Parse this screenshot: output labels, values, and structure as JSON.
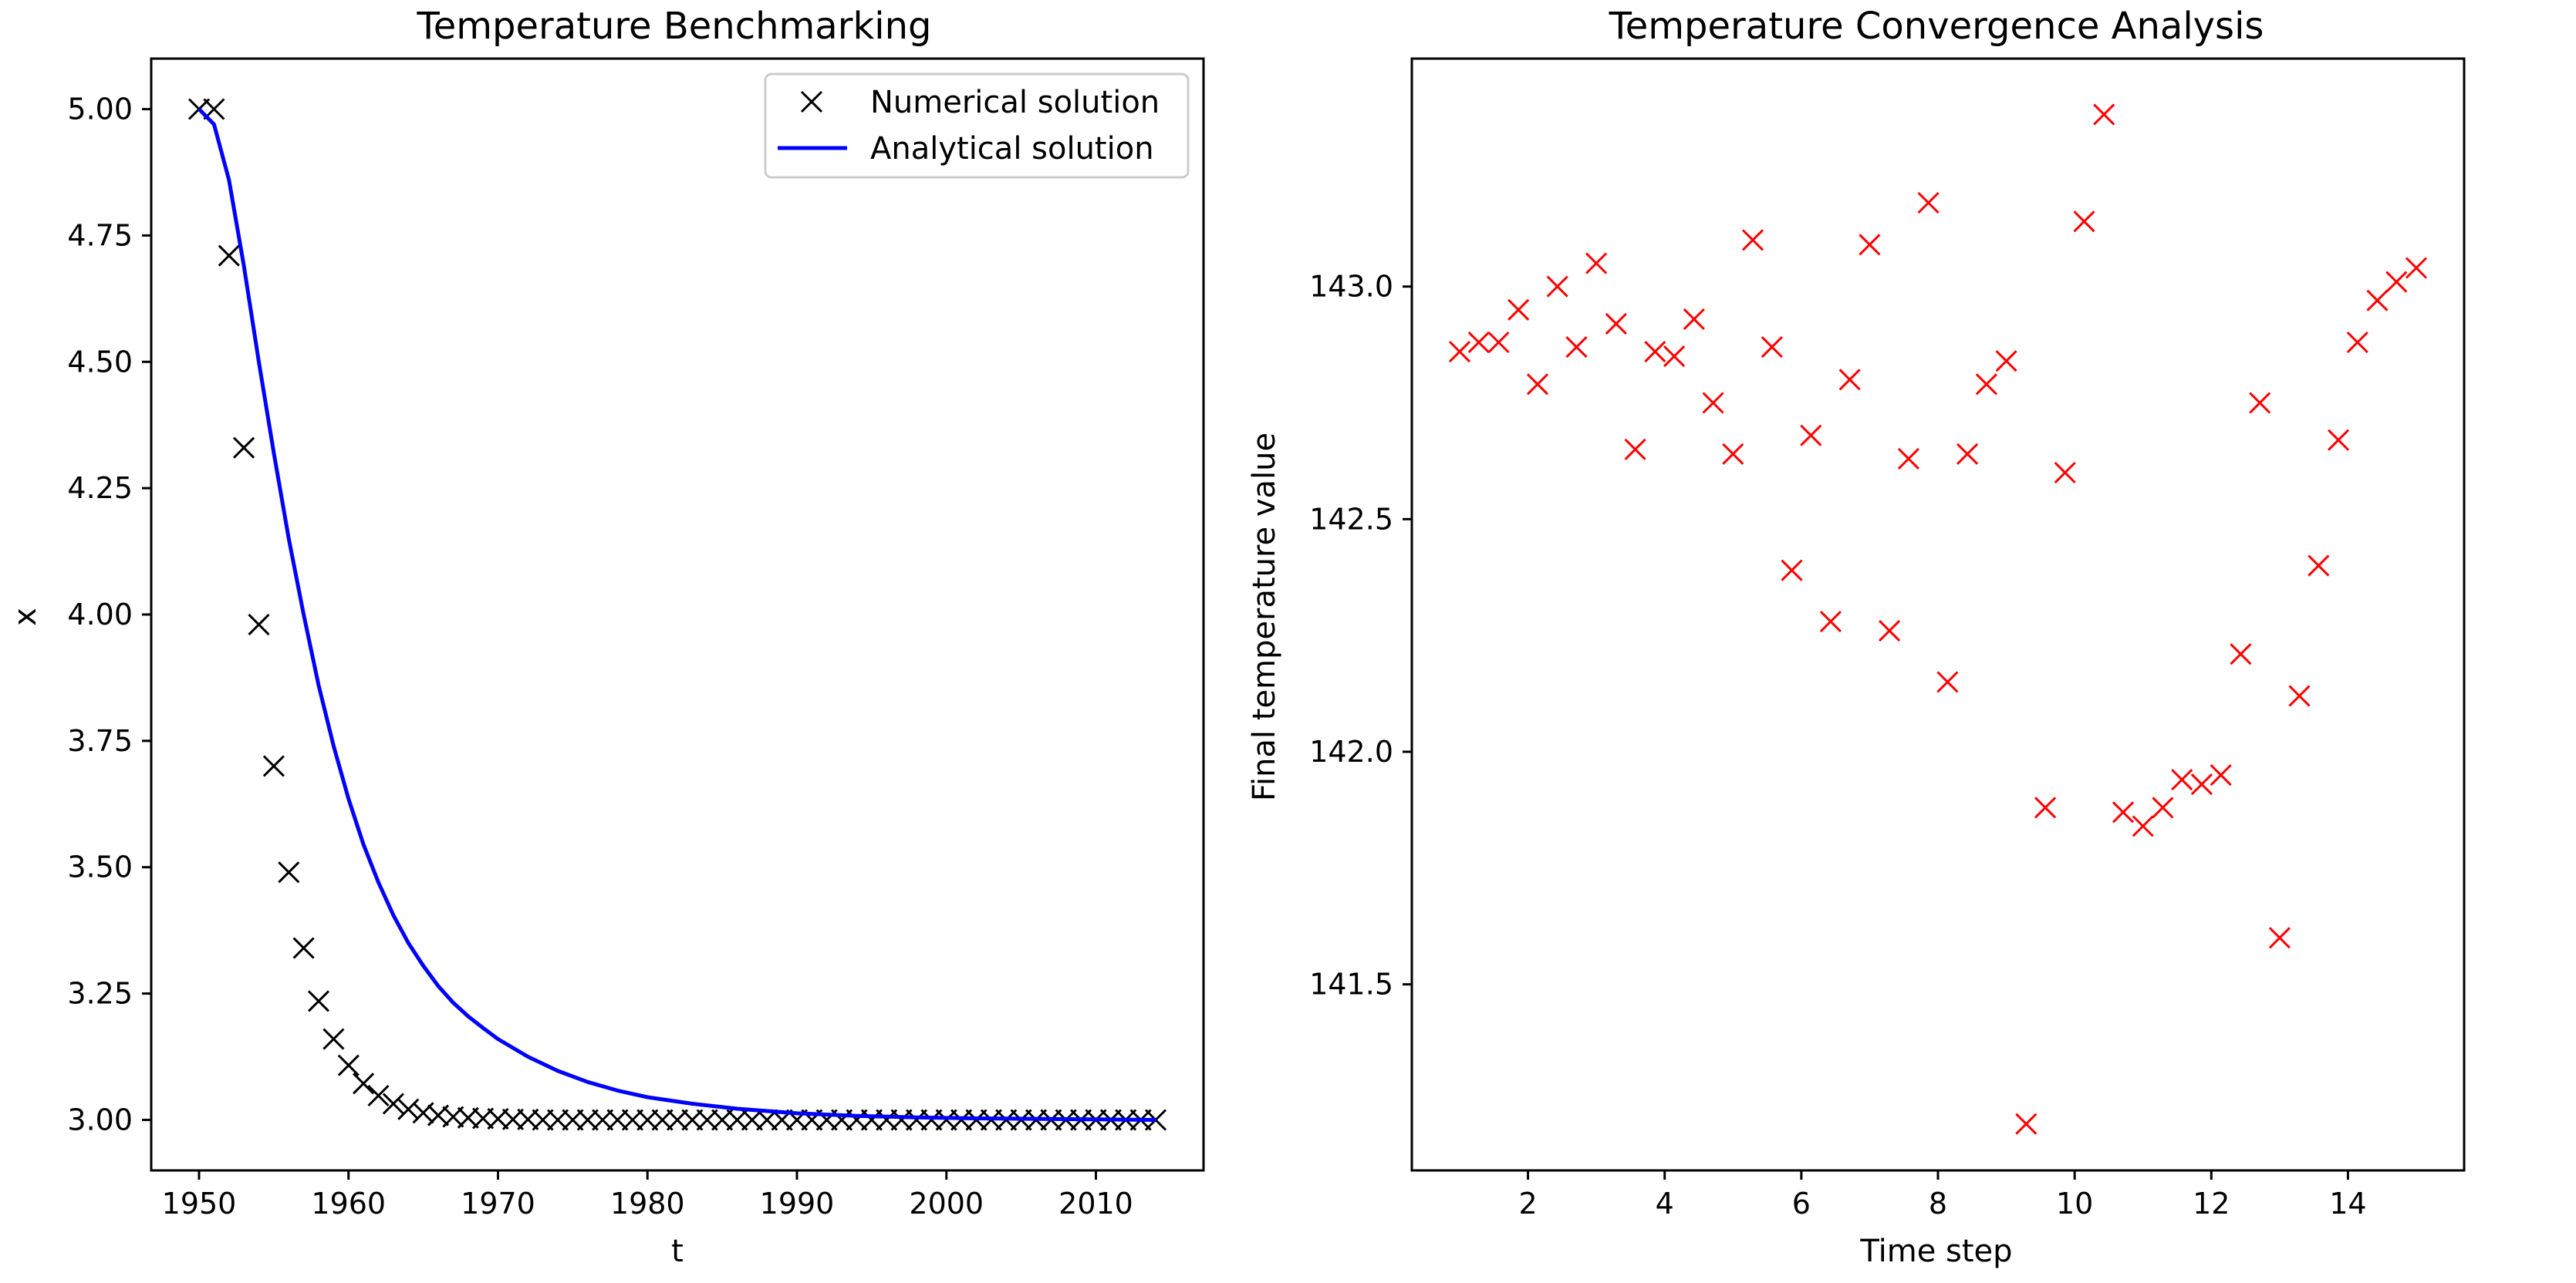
{
  "chart_data": [
    {
      "type": "line",
      "title": "Temperature Benchmarking",
      "xlabel": "t",
      "ylabel": "x",
      "xlim": [
        1946.8,
        2017.2
      ],
      "ylim": [
        2.9,
        5.1
      ],
      "xticks": [
        1950,
        1960,
        1970,
        1980,
        1990,
        2000,
        2010
      ],
      "xtick_labels": [
        "1950",
        "1960",
        "1970",
        "1980",
        "1990",
        "2000",
        "2010"
      ],
      "yticks": [
        3.0,
        3.25,
        3.5,
        3.75,
        4.0,
        4.25,
        4.5,
        4.75,
        5.0
      ],
      "ytick_labels": [
        "3.00",
        "3.25",
        "3.50",
        "3.75",
        "4.00",
        "4.25",
        "4.50",
        "4.75",
        "5.00"
      ],
      "grid": false,
      "legend_position": "top-right",
      "series": [
        {
          "name": "Numerical solution",
          "marker": "x",
          "color": "#000000",
          "x": [
            1950,
            1951,
            1952,
            1953,
            1954,
            1955,
            1956,
            1957,
            1958,
            1959,
            1960,
            1961,
            1962,
            1963,
            1964,
            1965,
            1966,
            1967,
            1968,
            1969,
            1970,
            1971,
            1972,
            1973,
            1974,
            1975,
            1976,
            1977,
            1978,
            1979,
            1980,
            1981,
            1982,
            1983,
            1984,
            1985,
            1986,
            1987,
            1988,
            1989,
            1990,
            1991,
            1992,
            1993,
            1994,
            1995,
            1996,
            1997,
            1998,
            1999,
            2000,
            2001,
            2002,
            2003,
            2004,
            2005,
            2006,
            2007,
            2008,
            2009,
            2010,
            2011,
            2012,
            2013,
            2014
          ],
          "y": [
            5.0,
            5.0,
            4.71,
            4.33,
            3.98,
            3.7,
            3.49,
            3.34,
            3.235,
            3.16,
            3.108,
            3.072,
            3.048,
            3.032,
            3.021,
            3.014,
            3.009,
            3.006,
            3.004,
            3.003,
            3.002,
            3.001,
            3.001,
            3.0,
            3.0,
            3.0,
            3.0,
            3.0,
            3.0,
            3.0,
            3.0,
            3.0,
            3.0,
            3.0,
            3.0,
            3.0,
            3.0,
            3.0,
            3.0,
            3.0,
            3.0,
            3.0,
            3.0,
            3.0,
            3.0,
            3.0,
            3.0,
            3.0,
            3.0,
            3.0,
            3.0,
            3.0,
            3.0,
            3.0,
            3.0,
            3.0,
            3.0,
            3.0,
            3.0,
            3.0,
            3.0,
            3.0,
            3.0,
            3.0,
            3.0
          ]
        },
        {
          "name": "Analytical solution",
          "style": "line",
          "color": "#0000ff",
          "x": [
            1950,
            1951,
            1952,
            1953,
            1954,
            1955,
            1956,
            1957,
            1958,
            1959,
            1960,
            1961,
            1962,
            1963,
            1964,
            1965,
            1966,
            1967,
            1968,
            1969,
            1970,
            1972,
            1974,
            1976,
            1978,
            1980,
            1983,
            1986,
            1990,
            1994,
            1998,
            2002,
            2006,
            2010,
            2014
          ],
          "y": [
            5.0,
            4.97,
            4.86,
            4.69,
            4.5,
            4.32,
            4.15,
            4.0,
            3.86,
            3.74,
            3.635,
            3.545,
            3.47,
            3.405,
            3.35,
            3.305,
            3.265,
            3.232,
            3.205,
            3.182,
            3.16,
            3.125,
            3.097,
            3.075,
            3.058,
            3.045,
            3.032,
            3.022,
            3.013,
            3.008,
            3.005,
            3.003,
            3.002,
            3.001,
            3.0
          ]
        }
      ]
    },
    {
      "type": "scatter",
      "title": "Temperature Convergence Analysis",
      "xlabel": "Time step",
      "ylabel": "Final temperature value",
      "xlim": [
        0.3,
        15.7
      ],
      "ylim": [
        141.1,
        143.49
      ],
      "xticks": [
        2,
        4,
        6,
        8,
        10,
        12,
        14
      ],
      "xtick_labels": [
        "2",
        "4",
        "6",
        "8",
        "10",
        "12",
        "14"
      ],
      "yticks": [
        141.5,
        142.0,
        142.5,
        143.0
      ],
      "ytick_labels": [
        "141.5",
        "142.0",
        "142.5",
        "143.0"
      ],
      "grid": false,
      "series": [
        {
          "marker": "x",
          "color": "#ff0000",
          "x": [
            1.0,
            1.28,
            1.57,
            1.86,
            2.14,
            2.43,
            2.71,
            3.0,
            3.29,
            3.57,
            3.86,
            4.14,
            4.43,
            4.71,
            5.0,
            5.29,
            5.57,
            5.86,
            6.14,
            6.43,
            6.71,
            7.0,
            7.29,
            7.57,
            7.86,
            8.14,
            8.43,
            8.71,
            9.0,
            9.29,
            9.57,
            9.86,
            10.14,
            10.43,
            10.71,
            11.0,
            11.29,
            11.57,
            11.86,
            12.14,
            12.43,
            12.71,
            13.0,
            13.29,
            13.57,
            13.86,
            14.14,
            14.43,
            14.71,
            15.0
          ],
          "y": [
            142.86,
            142.88,
            142.88,
            142.95,
            142.79,
            143.0,
            142.87,
            143.05,
            142.92,
            142.65,
            142.86,
            142.85,
            142.93,
            142.75,
            142.64,
            143.1,
            142.87,
            142.39,
            142.68,
            142.28,
            142.8,
            143.09,
            142.26,
            142.63,
            143.18,
            142.15,
            142.64,
            142.79,
            142.84,
            141.2,
            141.88,
            142.6,
            143.14,
            143.37,
            141.87,
            141.84,
            141.88,
            141.94,
            141.93,
            141.95,
            142.21,
            142.75,
            141.6,
            142.12,
            142.4,
            142.67,
            142.88,
            142.97,
            143.01,
            143.04
          ]
        }
      ]
    }
  ]
}
